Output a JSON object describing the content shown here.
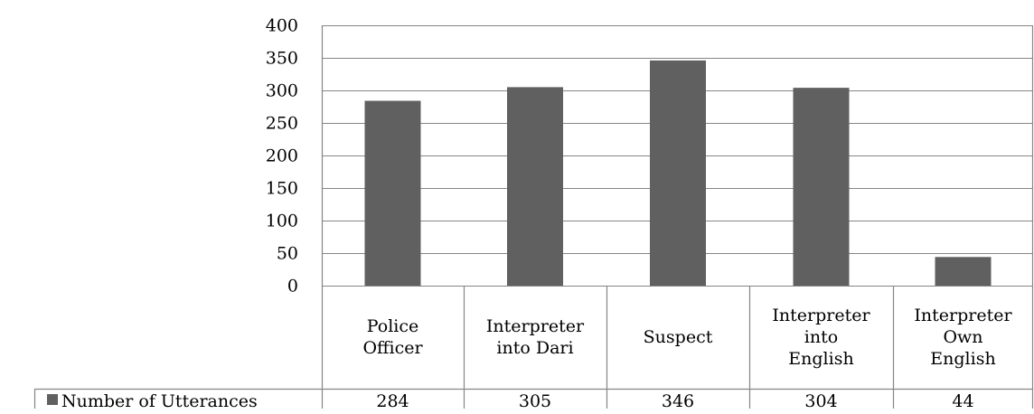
{
  "chart_data": {
    "type": "bar",
    "title": "",
    "xlabel": "",
    "ylabel": "",
    "ylim": [
      0,
      400
    ],
    "yticks": [
      0,
      50,
      100,
      150,
      200,
      250,
      300,
      350,
      400
    ],
    "grid": true,
    "legend": "data-table-left",
    "categories": [
      [
        "Police",
        "Officer"
      ],
      [
        "Interpreter",
        "into Dari"
      ],
      [
        "Suspect"
      ],
      [
        "Interpreter",
        "into",
        "English"
      ],
      [
        "Interpreter",
        "Own",
        "English"
      ]
    ],
    "series": [
      {
        "name": "Number of Utterances",
        "values": [
          284,
          305,
          346,
          304,
          44
        ]
      }
    ]
  },
  "colors": {
    "bar": "#606060",
    "grid": "#868686"
  }
}
